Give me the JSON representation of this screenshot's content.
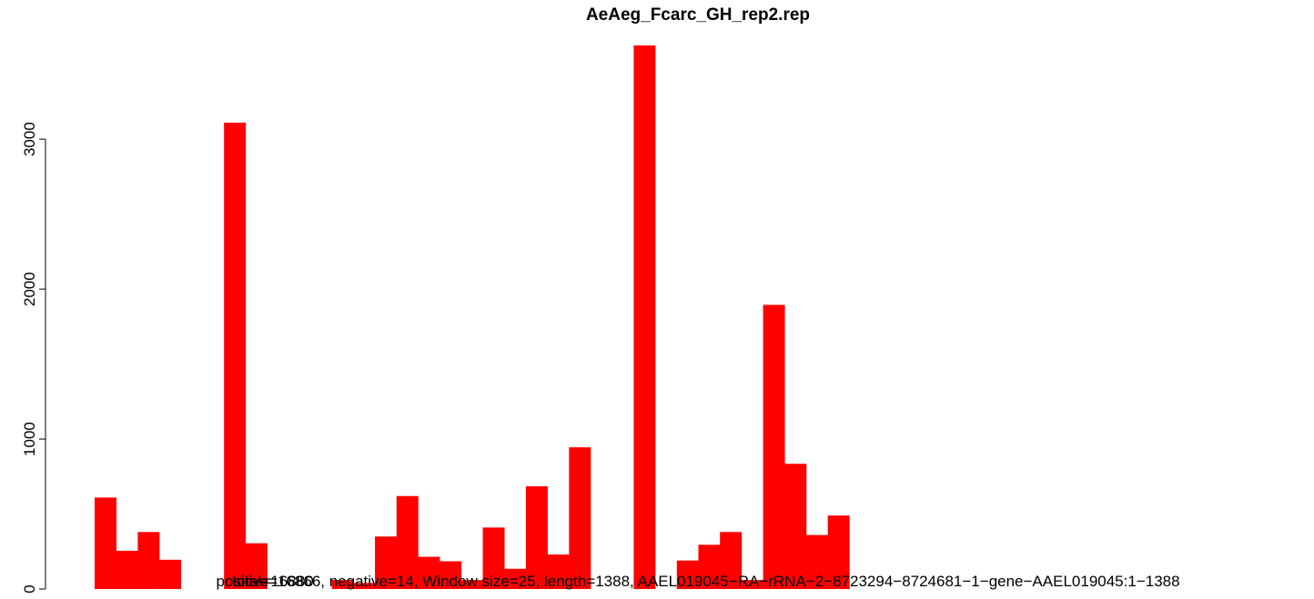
{
  "chart_data": {
    "type": "bar",
    "title": "AeAeg_Fcarc_GH_rep2.rep",
    "annotations": [
      "positive=16866, negative=14, Window size=25, length=1388, AAEL019045−RA−rRNA−2−8723294−8724681−1−gene−AAEL019045:1−1388",
      "total=16880"
    ],
    "values": [
      610,
      255,
      380,
      195,
      0,
      0,
      3110,
      305,
      0,
      0,
      0,
      60,
      40,
      350,
      620,
      215,
      185,
      60,
      410,
      135,
      685,
      230,
      945,
      0,
      0,
      3625,
      0,
      190,
      295,
      380,
      60,
      1895,
      835,
      360,
      490,
      0,
      0,
      0,
      0,
      0,
      0,
      0,
      0,
      0,
      0,
      0,
      0,
      0,
      0,
      0,
      0,
      0,
      0,
      0,
      0,
      0
    ],
    "color": "#ff0000",
    "ylim": [
      0,
      3625
    ],
    "yticks": [
      0,
      1000,
      2000,
      3000
    ]
  }
}
